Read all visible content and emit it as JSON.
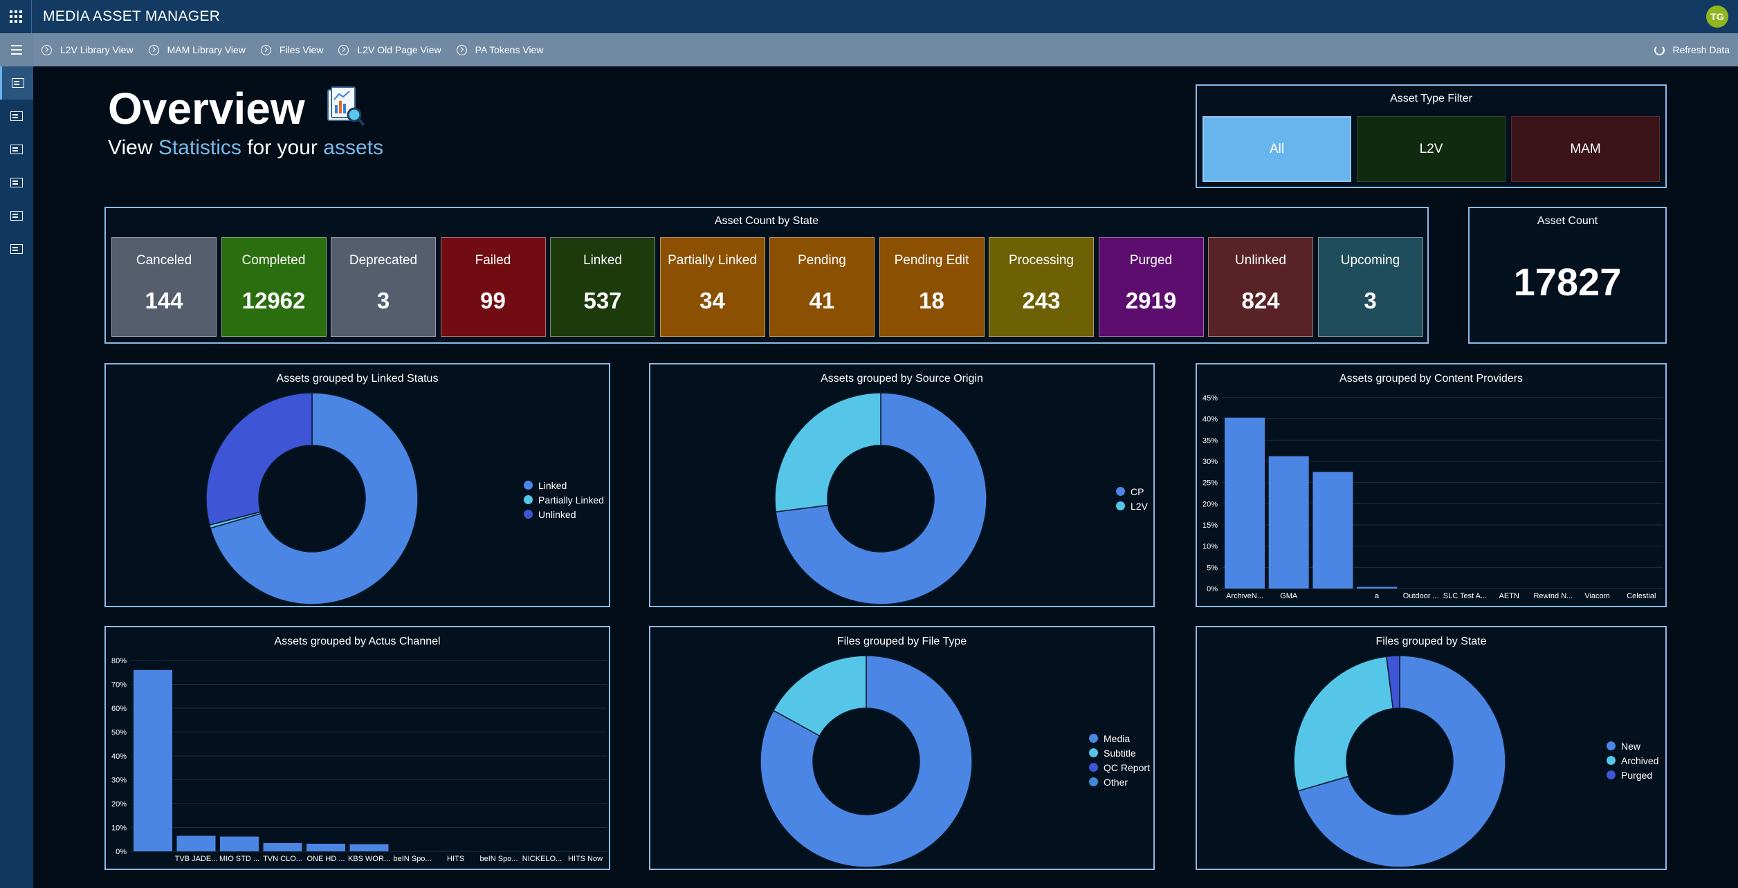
{
  "app": {
    "title": "MEDIA ASSET MANAGER",
    "avatar_initials": "TG"
  },
  "nav": {
    "links": [
      "L2V Library View",
      "MAM Library View",
      "Files View",
      "L2V Old Page View",
      "PA Tokens View"
    ],
    "refresh_label": "Refresh Data"
  },
  "sidebar": {
    "icons": [
      "overview-icon",
      "assets-icon",
      "library-icon",
      "document-icon",
      "image-icon",
      "settings-icon"
    ]
  },
  "hero": {
    "title": "Overview",
    "sub_view": "View",
    "sub_statistics": "Statistics",
    "sub_for_your": "for your",
    "sub_assets": "assets"
  },
  "filter": {
    "title": "Asset Type Filter",
    "buttons": [
      {
        "label": "All",
        "color": "#68b5ee",
        "border": "#8ec8f4",
        "selected": true
      },
      {
        "label": "L2V",
        "color": "#0f2a0e",
        "border": "#2c4a2a",
        "selected": false
      },
      {
        "label": "MAM",
        "color": "#3a1419",
        "border": "#5c2a30",
        "selected": false
      }
    ]
  },
  "states": {
    "title": "Asset Count by State",
    "items": [
      {
        "label": "Canceled",
        "value": "144",
        "color": "#565e6e"
      },
      {
        "label": "Completed",
        "value": "12962",
        "color": "#2a6e10"
      },
      {
        "label": "Deprecated",
        "value": "3",
        "color": "#565e6e"
      },
      {
        "label": "Failed",
        "value": "99",
        "color": "#720c13"
      },
      {
        "label": "Linked",
        "value": "537",
        "color": "#1d3a0d"
      },
      {
        "label": "Partially Linked",
        "value": "34",
        "color": "#8b5002"
      },
      {
        "label": "Pending",
        "value": "41",
        "color": "#8b5002"
      },
      {
        "label": "Pending Edit",
        "value": "18",
        "color": "#8b5002"
      },
      {
        "label": "Processing",
        "value": "243",
        "color": "#6e6004"
      },
      {
        "label": "Purged",
        "value": "2919",
        "color": "#5c0d6e"
      },
      {
        "label": "Unlinked",
        "value": "824",
        "color": "#582227"
      },
      {
        "label": "Upcoming",
        "value": "3",
        "color": "#1f4d5c"
      }
    ]
  },
  "asset_count": {
    "title": "Asset Count",
    "value": "17827"
  },
  "chart_data": [
    {
      "type": "pie",
      "title": "Assets grouped by Linked Status",
      "categories": [
        "Linked",
        "Partially Linked",
        "Unlinked"
      ],
      "values": [
        70.5,
        0.5,
        29.0
      ],
      "colors": [
        "#4b86e4",
        "#55c6e8",
        "#3e55d6"
      ],
      "legend": "right"
    },
    {
      "type": "pie",
      "title": "Assets grouped by Source Origin",
      "categories": [
        "CP",
        "L2V"
      ],
      "values": [
        73.0,
        27.0
      ],
      "colors": [
        "#4b86e4",
        "#55c6e8"
      ],
      "legend": "right"
    },
    {
      "type": "bar",
      "title": "Assets grouped by Content Providers",
      "categories": [
        "ArchiveN...",
        "GMA",
        "",
        "a",
        "Outdoor ...",
        "SLC Test A...",
        "AETN",
        "Rewind N...",
        "Viacom",
        "Celestial"
      ],
      "values": [
        40.3,
        31.2,
        27.5,
        0.4,
        0,
        0,
        0,
        0,
        0,
        0
      ],
      "ylim": [
        0,
        45
      ],
      "yticks": [
        "0%",
        "5%",
        "10%",
        "15%",
        "20%",
        "25%",
        "30%",
        "35%",
        "40%",
        "45%"
      ],
      "color": "#4b86e4",
      "grid": true
    },
    {
      "type": "bar",
      "title": "Assets grouped by Actus Channel",
      "categories": [
        "",
        "TVB JADE...",
        "MIO STD ...",
        "TVN CLO...",
        "ONE HD ...",
        "KBS WOR...",
        "beIN Spo...",
        "HITS",
        "beIN Spo...",
        "NICKELO...",
        "HITS Now"
      ],
      "values": [
        76,
        6.5,
        6.2,
        3.5,
        3.2,
        3.0,
        0,
        0,
        0,
        0,
        0
      ],
      "ylim": [
        0,
        80
      ],
      "yticks": [
        "0%",
        "10%",
        "20%",
        "30%",
        "40%",
        "50%",
        "60%",
        "70%",
        "80%"
      ],
      "color": "#4b86e4",
      "grid": true
    },
    {
      "type": "pie",
      "title": "Files grouped by File Type",
      "categories": [
        "Media",
        "Subtitle",
        "QC Report",
        "Other"
      ],
      "values": [
        83.0,
        17.0,
        0,
        0
      ],
      "colors": [
        "#4b86e4",
        "#55c6e8",
        "#3e55d6",
        "#3f8ad8"
      ],
      "legend": "right"
    },
    {
      "type": "pie",
      "title": "Files grouped by State",
      "categories": [
        "New",
        "Archived",
        "Purged"
      ],
      "values": [
        70.5,
        27.5,
        2.0
      ],
      "colors": [
        "#4b86e4",
        "#55c6e8",
        "#3e55d6"
      ],
      "legend": "right"
    }
  ]
}
